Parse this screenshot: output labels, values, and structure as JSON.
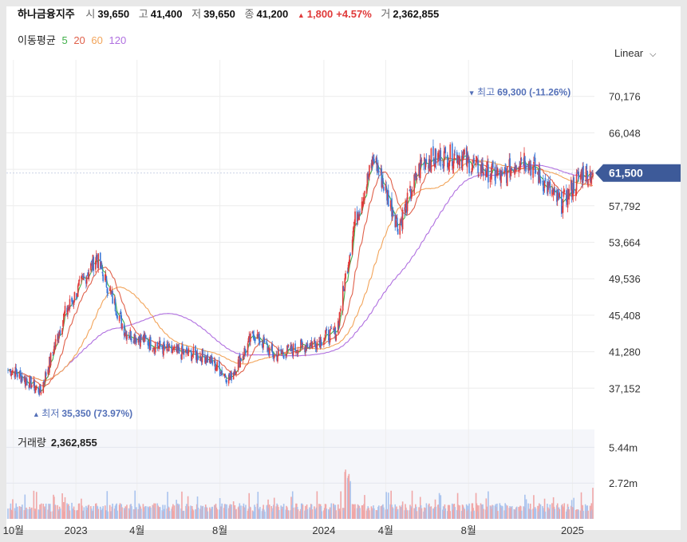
{
  "header": {
    "stock_name": "하나금융지주",
    "open_label": "시",
    "open_value": "39,650",
    "high_label": "고",
    "high_value": "41,400",
    "low_label": "저",
    "low_value": "39,650",
    "close_label": "종",
    "close_value": "41,200",
    "change_value": "1,800",
    "change_pct": "+4.57%",
    "volume_label": "거",
    "volume_value": "2,362,855"
  },
  "ma_legend": {
    "title": "이동평균",
    "periods": [
      "5",
      "20",
      "60",
      "120"
    ]
  },
  "scale_selector": {
    "label": "Linear"
  },
  "colors": {
    "up": "#e03a3a",
    "down": "#3a78d8",
    "ma5": "#41b04a",
    "ma20": "#e0604a",
    "ma60": "#f2a45a",
    "ma120": "#b070e0",
    "price_tag": "#3d5a99"
  },
  "chart_data": [
    {
      "type": "candlestick",
      "x_tick_labels": [
        "10월",
        "2023",
        "4월",
        "8월",
        "2024",
        "4월",
        "8월",
        "2025"
      ],
      "y_tick_labels": [
        "70,176",
        "66,048",
        "61,920",
        "57,792",
        "53,664",
        "49,536",
        "45,408",
        "41,280",
        "37,152"
      ],
      "ylim": [
        33024,
        74304
      ],
      "grid": true,
      "current_price": "61,500",
      "high_marker": {
        "label": "최고",
        "value": "69,300 (-11.26%)"
      },
      "low_marker": {
        "label": "최저",
        "value": "35,350 (73.97%)"
      },
      "price_path_approx": [
        {
          "x": "2022-09-30",
          "y": 39200
        },
        {
          "x": "2022-11-10",
          "y": 36800
        },
        {
          "x": "2022-12-15",
          "y": 45500
        },
        {
          "x": "2023-01-31",
          "y": 52000
        },
        {
          "x": "2023-03-15",
          "y": 43500
        },
        {
          "x": "2023-05-20",
          "y": 41300
        },
        {
          "x": "2023-07-10",
          "y": 40800
        },
        {
          "x": "2023-08-15",
          "y": 38200
        },
        {
          "x": "2023-09-20",
          "y": 43300
        },
        {
          "x": "2023-10-20",
          "y": 40800
        },
        {
          "x": "2023-12-20",
          "y": 42400
        },
        {
          "x": "2024-01-20",
          "y": 43600
        },
        {
          "x": "2024-02-15",
          "y": 55900
        },
        {
          "x": "2024-03-15",
          "y": 63200
        },
        {
          "x": "2024-04-20",
          "y": 55400
        },
        {
          "x": "2024-05-25",
          "y": 62900
        },
        {
          "x": "2024-07-15",
          "y": 63600
        },
        {
          "x": "2024-08-10",
          "y": 62300
        },
        {
          "x": "2024-09-20",
          "y": 61000
        },
        {
          "x": "2024-10-20",
          "y": 63500
        },
        {
          "x": "2024-12-15",
          "y": 57900
        },
        {
          "x": "2025-01-15",
          "y": 61500
        }
      ]
    },
    {
      "type": "bar",
      "title": "거래량",
      "current_value": "2,362,855",
      "y_tick_labels": [
        "5.44m",
        "2.72m"
      ],
      "ylim": [
        0,
        6800000
      ]
    }
  ]
}
